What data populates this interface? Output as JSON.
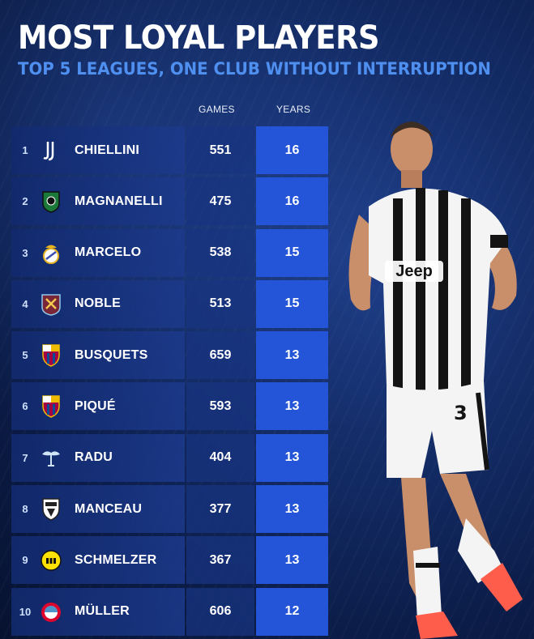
{
  "header": {
    "title": "MOST LOYAL PLAYERS",
    "subtitle": "TOP 5 LEAGUES, ONE CLUB WITHOUT INTERRUPTION"
  },
  "columns": {
    "games": "GAMES",
    "years": "YEARS"
  },
  "players": [
    {
      "rank": "1",
      "name": "CHIELLINI",
      "games": "551",
      "years": "16",
      "crest": "juventus-crest-icon"
    },
    {
      "rank": "2",
      "name": "MAGNANELLI",
      "games": "475",
      "years": "16",
      "crest": "sassuolo-crest-icon"
    },
    {
      "rank": "3",
      "name": "MARCELO",
      "games": "538",
      "years": "15",
      "crest": "real-madrid-crest-icon"
    },
    {
      "rank": "4",
      "name": "NOBLE",
      "games": "513",
      "years": "15",
      "crest": "west-ham-crest-icon"
    },
    {
      "rank": "5",
      "name": "BUSQUETS",
      "games": "659",
      "years": "13",
      "crest": "barcelona-crest-icon"
    },
    {
      "rank": "6",
      "name": "PIQUÉ",
      "games": "593",
      "years": "13",
      "crest": "barcelona-crest-icon"
    },
    {
      "rank": "7",
      "name": "RADU",
      "games": "404",
      "years": "13",
      "crest": "lazio-crest-icon"
    },
    {
      "rank": "8",
      "name": "MANCEAU",
      "games": "377",
      "years": "13",
      "crest": "angers-crest-icon"
    },
    {
      "rank": "9",
      "name": "SCHMELZER",
      "games": "367",
      "years": "13",
      "crest": "dortmund-crest-icon"
    },
    {
      "rank": "10",
      "name": "MÜLLER",
      "games": "606",
      "years": "12",
      "crest": "bayern-crest-icon"
    }
  ],
  "photo": {
    "shirt_sponsor": "Jeep",
    "shirt_number": "3"
  },
  "colors": {
    "accent": "#2455d8",
    "subtitle": "#4f8ff0",
    "background": "#0b1c48"
  }
}
